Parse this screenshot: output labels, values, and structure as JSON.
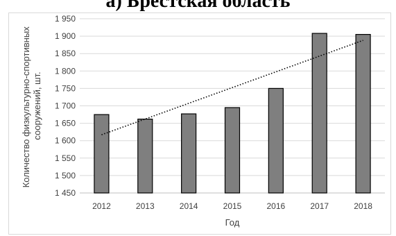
{
  "chart_data": {
    "type": "bar",
    "title": "а) Брестская область",
    "xlabel": "Год",
    "ylabel_lines": [
      "Количество физкультурно-спортивных",
      "сооружений, шт."
    ],
    "categories": [
      "2012",
      "2013",
      "2014",
      "2015",
      "2016",
      "2017",
      "2018"
    ],
    "values": [
      1675,
      1662,
      1677,
      1695,
      1750,
      1908,
      1905
    ],
    "ylim": [
      1450,
      1950
    ],
    "yticks": [
      1450,
      1500,
      1550,
      1600,
      1650,
      1700,
      1750,
      1800,
      1850,
      1900,
      1950
    ],
    "ytick_labels": [
      "1 450",
      "1 500",
      "1 550",
      "1 600",
      "1 650",
      "1 700",
      "1 750",
      "1 800",
      "1 850",
      "1 900",
      "1 950"
    ],
    "trendline": {
      "type": "linear",
      "style": "dotted",
      "start": 1617,
      "end": 1888
    },
    "grid": true,
    "bar_color": "#7f7f7f",
    "bar_edge_color": "#000000",
    "grid_color": "#d9d9d9"
  }
}
